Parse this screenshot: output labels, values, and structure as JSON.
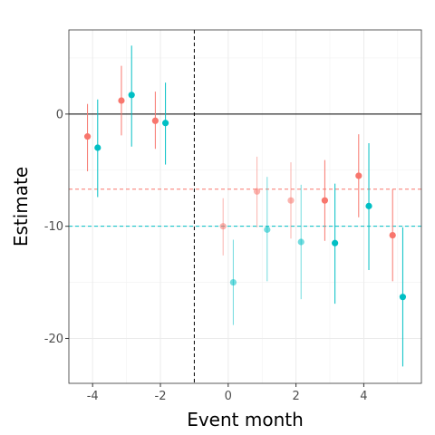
{
  "chart_data": {
    "type": "scatter",
    "title": "",
    "xlabel": "Event month",
    "ylabel": "Estimate",
    "xlim": [
      -4.7,
      5.7
    ],
    "ylim": [
      -24,
      7.5
    ],
    "x_ticks": [
      -4,
      -2,
      0,
      2,
      4
    ],
    "x_tick_labels": [
      "-4",
      "-2",
      "0",
      "2",
      "4"
    ],
    "y_ticks": [
      -20,
      -10,
      0
    ],
    "y_tick_labels": [
      "-20",
      "-10",
      "0"
    ],
    "grid": true,
    "legend": "none",
    "vertical_reference_x": -1,
    "horizontal_reference_y": 0,
    "colors": {
      "series_a": "#F8766D",
      "series_b": "#00BFC4"
    },
    "series": [
      {
        "color": "#F8766D",
        "mean_line": -6.7,
        "points": [
          {
            "x": -4.15,
            "y": -2.0,
            "lo": -5.1,
            "hi": 0.9,
            "faded": false
          },
          {
            "x": -3.15,
            "y": 1.2,
            "lo": -1.9,
            "hi": 4.3,
            "faded": false
          },
          {
            "x": -2.15,
            "y": -0.6,
            "lo": -3.1,
            "hi": 2.0,
            "faded": false
          },
          {
            "x": -0.15,
            "y": -10.0,
            "lo": -12.6,
            "hi": -7.5,
            "faded": true
          },
          {
            "x": 0.85,
            "y": -6.9,
            "lo": -10.1,
            "hi": -3.8,
            "faded": true
          },
          {
            "x": 1.85,
            "y": -7.7,
            "lo": -11.1,
            "hi": -4.3,
            "faded": true
          },
          {
            "x": 2.85,
            "y": -7.7,
            "lo": -11.3,
            "hi": -4.1,
            "faded": false
          },
          {
            "x": 3.85,
            "y": -5.5,
            "lo": -9.2,
            "hi": -1.8,
            "faded": false
          },
          {
            "x": 4.85,
            "y": -10.8,
            "lo": -14.9,
            "hi": -6.7,
            "faded": false
          }
        ]
      },
      {
        "color": "#00BFC4",
        "mean_line": -10.0,
        "points": [
          {
            "x": -3.85,
            "y": -3.0,
            "lo": -7.4,
            "hi": 1.3,
            "faded": false
          },
          {
            "x": -2.85,
            "y": 1.7,
            "lo": -2.9,
            "hi": 6.1,
            "faded": false
          },
          {
            "x": -1.85,
            "y": -0.8,
            "lo": -4.5,
            "hi": 2.8,
            "faded": false
          },
          {
            "x": 0.15,
            "y": -15.0,
            "lo": -18.8,
            "hi": -11.2,
            "faded": true
          },
          {
            "x": 1.15,
            "y": -10.3,
            "lo": -14.9,
            "hi": -5.6,
            "faded": true
          },
          {
            "x": 2.15,
            "y": -11.4,
            "lo": -16.5,
            "hi": -6.3,
            "faded": true
          },
          {
            "x": 3.15,
            "y": -11.5,
            "lo": -16.9,
            "hi": -6.2,
            "faded": false
          },
          {
            "x": 4.15,
            "y": -8.2,
            "lo": -13.9,
            "hi": -2.6,
            "faded": false
          },
          {
            "x": 5.15,
            "y": -16.3,
            "lo": -22.5,
            "hi": -10.1,
            "faded": false
          }
        ]
      }
    ]
  }
}
